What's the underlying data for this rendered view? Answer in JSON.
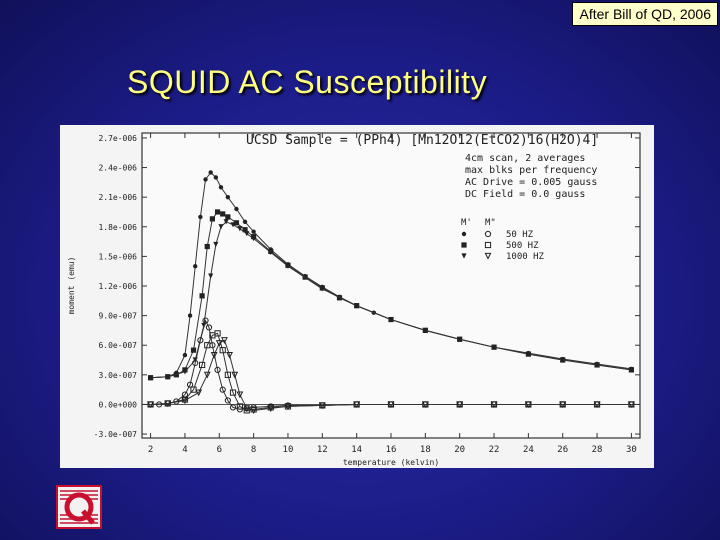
{
  "slide": {
    "title": "SQUID AC Susceptibility",
    "credit": "After Bill of QD, 2006"
  },
  "logo": {
    "icon": "qd-logo-icon",
    "color": "#c8102e"
  },
  "chart_data": {
    "type": "scatter",
    "title": "UCSD Sample = (PPh4) [Mn12O12(EtCO2)16(H2O)4]",
    "annotations": [
      "4cm scan, 2 averages",
      "max blks per frequency",
      "AC Drive = 0.005 gauss",
      "DC Field = 0.0 gauss"
    ],
    "legend_header": [
      "M'",
      "M\""
    ],
    "legend_position": "right",
    "xlabel": "temperature (kelvin)",
    "ylabel": "moment (emu)",
    "xlim": [
      1.5,
      30.5
    ],
    "ylim": [
      -3.4e-07,
      2.75e-06
    ],
    "xticks": [
      2,
      4,
      6,
      8,
      10,
      12,
      14,
      16,
      18,
      20,
      22,
      24,
      26,
      28,
      30
    ],
    "yticks": [
      -3e-07,
      0,
      3e-07,
      6e-07,
      9e-07,
      1.2e-06,
      1.5e-06,
      1.8e-06,
      2.1e-06,
      2.4e-06,
      2.7e-06
    ],
    "ytick_labels": [
      "-3.0e-007",
      "0.0e+000",
      "3.0e-007",
      "6.0e-007",
      "9.0e-007",
      "1.2e-006",
      "1.5e-006",
      "1.8e-006",
      "2.1e-006",
      "2.4e-006",
      "2.7e-006"
    ],
    "series": [
      {
        "name": "50 HZ",
        "component": "M'",
        "marker": "dot",
        "x": [
          2.0,
          3.0,
          3.5,
          4.0,
          4.3,
          4.6,
          4.9,
          5.2,
          5.5,
          5.8,
          6.1,
          6.5,
          7,
          7.5,
          8,
          9,
          10,
          11,
          12,
          13,
          14,
          15,
          16,
          18,
          20,
          22,
          24,
          26,
          28,
          30
        ],
        "y": [
          2.7e-07,
          2.8e-07,
          3.2e-07,
          5e-07,
          9e-07,
          1.4e-06,
          1.9e-06,
          2.28e-06,
          2.35e-06,
          2.3e-06,
          2.2e-06,
          2.1e-06,
          1.98e-06,
          1.85e-06,
          1.75e-06,
          1.57e-06,
          1.42e-06,
          1.3e-06,
          1.19e-06,
          1.09e-06,
          1e-06,
          9.3e-07,
          8.6e-07,
          7.5e-07,
          6.6e-07,
          5.8e-07,
          5.2e-07,
          4.6e-07,
          4.1e-07,
          3.6e-07
        ]
      },
      {
        "name": "500 HZ",
        "component": "M'",
        "marker": "square",
        "x": [
          2.0,
          3.0,
          3.5,
          4.0,
          4.5,
          5.0,
          5.3,
          5.6,
          5.9,
          6.2,
          6.5,
          7,
          7.5,
          8,
          9,
          10,
          11,
          12,
          13,
          14,
          16,
          18,
          20,
          22,
          24,
          26,
          28,
          30
        ],
        "y": [
          2.7e-07,
          2.8e-07,
          3e-07,
          3.5e-07,
          5.5e-07,
          1.1e-06,
          1.6e-06,
          1.88e-06,
          1.95e-06,
          1.93e-06,
          1.9e-06,
          1.84e-06,
          1.77e-06,
          1.7e-06,
          1.55e-06,
          1.41e-06,
          1.29e-06,
          1.18e-06,
          1.08e-06,
          1e-06,
          8.6e-07,
          7.5e-07,
          6.6e-07,
          5.8e-07,
          5.1e-07,
          4.5e-07,
          4e-07,
          3.5e-07
        ]
      },
      {
        "name": "1000 HZ",
        "component": "M'",
        "marker": "triangle",
        "x": [
          2.0,
          3.0,
          4.0,
          4.6,
          5.1,
          5.5,
          5.8,
          6.1,
          6.4,
          6.8,
          7.2,
          7.6,
          8,
          9,
          10,
          12,
          14,
          16,
          18,
          20,
          22,
          24,
          26,
          28,
          30
        ],
        "y": [
          2.7e-07,
          2.8e-07,
          3.3e-07,
          4.5e-07,
          8e-07,
          1.3e-06,
          1.62e-06,
          1.8e-06,
          1.85e-06,
          1.82e-06,
          1.78e-06,
          1.73e-06,
          1.68e-06,
          1.54e-06,
          1.4e-06,
          1.17e-06,
          1e-06,
          8.6e-07,
          7.5e-07,
          6.6e-07,
          5.8e-07,
          5.1e-07,
          4.5e-07,
          4e-07,
          3.5e-07
        ]
      },
      {
        "name": "50 HZ",
        "component": "M\"",
        "marker": "circle",
        "x": [
          2.0,
          2.5,
          3.0,
          3.5,
          4.0,
          4.3,
          4.6,
          4.9,
          5.2,
          5.4,
          5.6,
          5.9,
          6.2,
          6.5,
          6.8,
          7.2,
          7.6,
          8,
          9,
          10,
          12,
          14,
          16,
          18,
          20,
          22,
          24,
          26,
          28,
          30
        ],
        "y": [
          0,
          0,
          1e-08,
          3e-08,
          1e-07,
          2e-07,
          4.2e-07,
          6.5e-07,
          8.5e-07,
          7.8e-07,
          6e-07,
          3.5e-07,
          1.5e-07,
          4e-08,
          -3e-08,
          -5e-08,
          -4e-08,
          -3e-08,
          -2e-08,
          -1e-08,
          -1e-08,
          0,
          0,
          0,
          0,
          0,
          0,
          0,
          0,
          0
        ]
      },
      {
        "name": "500 HZ",
        "component": "M\"",
        "marker": "square-open",
        "x": [
          2.0,
          3.0,
          4.0,
          4.5,
          5.0,
          5.3,
          5.6,
          5.9,
          6.2,
          6.5,
          6.8,
          7.2,
          7.6,
          8,
          9,
          10,
          12,
          14,
          16,
          18,
          20,
          22,
          24,
          26,
          28,
          30
        ],
        "y": [
          0,
          1e-08,
          5e-08,
          1.5e-07,
          4e-07,
          6e-07,
          7e-07,
          7.2e-07,
          5.5e-07,
          3e-07,
          1.2e-07,
          -2e-08,
          -6e-08,
          -5e-08,
          -3e-08,
          -2e-08,
          -1e-08,
          0,
          0,
          0,
          0,
          0,
          0,
          0,
          0,
          0
        ]
      },
      {
        "name": "1000 HZ",
        "component": "M\"",
        "marker": "triangle-open",
        "x": [
          2.0,
          3.0,
          4.0,
          4.8,
          5.3,
          5.7,
          6.0,
          6.3,
          6.6,
          6.9,
          7.2,
          7.6,
          8,
          9,
          10,
          12,
          14,
          16,
          18,
          20,
          22,
          24,
          26,
          28,
          30
        ],
        "y": [
          0,
          1e-08,
          4e-08,
          1.2e-07,
          3e-07,
          5e-07,
          6.2e-07,
          6.5e-07,
          5e-07,
          3e-07,
          1e-07,
          -4e-08,
          -6e-08,
          -4e-08,
          -2e-08,
          -1e-08,
          0,
          0,
          0,
          0,
          0,
          0,
          0,
          0,
          0
        ]
      }
    ]
  }
}
